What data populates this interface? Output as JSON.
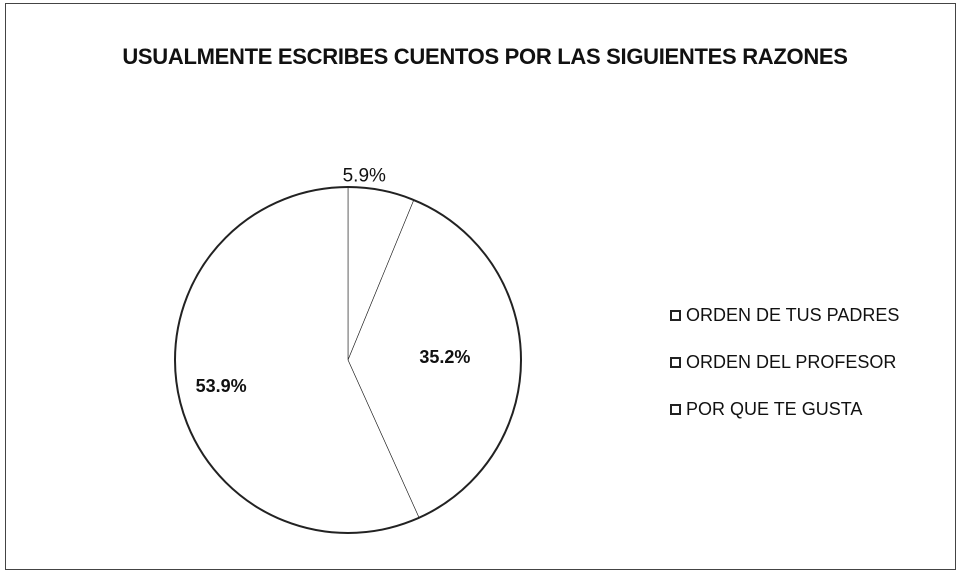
{
  "chart_data": {
    "type": "pie",
    "title": "USUALMENTE ESCRIBES CUENTOS POR LAS SIGUIENTES RAZONES",
    "categories": [
      "ORDEN DE TUS PADRES",
      "ORDEN DEL PROFESOR",
      "POR QUE TE GUSTA"
    ],
    "values": [
      5.9,
      35.2,
      53.9
    ],
    "value_labels": [
      "5.9%",
      "35.2%",
      "53.9%"
    ],
    "colors": [
      "#ffffff",
      "#ffffff",
      "#ffffff"
    ],
    "legend": "right"
  }
}
